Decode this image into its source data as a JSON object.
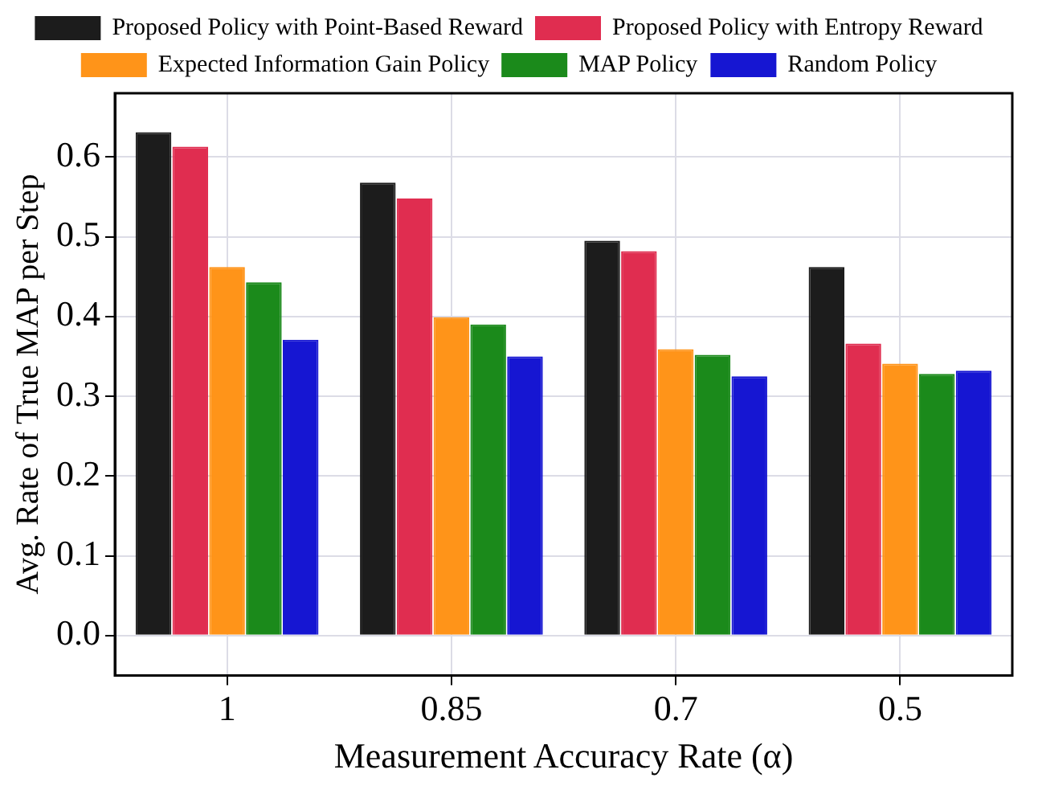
{
  "chart_data": {
    "type": "bar",
    "xlabel": "Measurement Accuracy Rate (α)",
    "ylabel": "Avg. Rate of True MAP per Step",
    "categories": [
      "1",
      "0.85",
      "0.7",
      "0.5"
    ],
    "series": [
      {
        "name": "Proposed Policy with Point-Based Reward",
        "color": "#1c1c1c",
        "values": [
          0.631,
          0.568,
          0.495,
          0.462
        ]
      },
      {
        "name": "Proposed Policy with Entropy Reward",
        "color": "#e02d50",
        "values": [
          0.613,
          0.548,
          0.482,
          0.366
        ]
      },
      {
        "name": "Expected Information Gain Policy",
        "color": "#ff9419",
        "values": [
          0.462,
          0.399,
          0.359,
          0.341
        ]
      },
      {
        "name": "MAP Policy",
        "color": "#1b8a1b",
        "values": [
          0.443,
          0.39,
          0.352,
          0.328
        ]
      },
      {
        "name": "Random Policy",
        "color": "#1616d2",
        "values": [
          0.371,
          0.35,
          0.325,
          0.332
        ]
      }
    ],
    "ylim": [
      -0.05,
      0.68
    ],
    "yticks": [
      {
        "value": 0,
        "label": "0.0"
      },
      0.1,
      0.2,
      0.3,
      0.4,
      0.5,
      0.6
    ],
    "grid": true,
    "legend": "top"
  }
}
